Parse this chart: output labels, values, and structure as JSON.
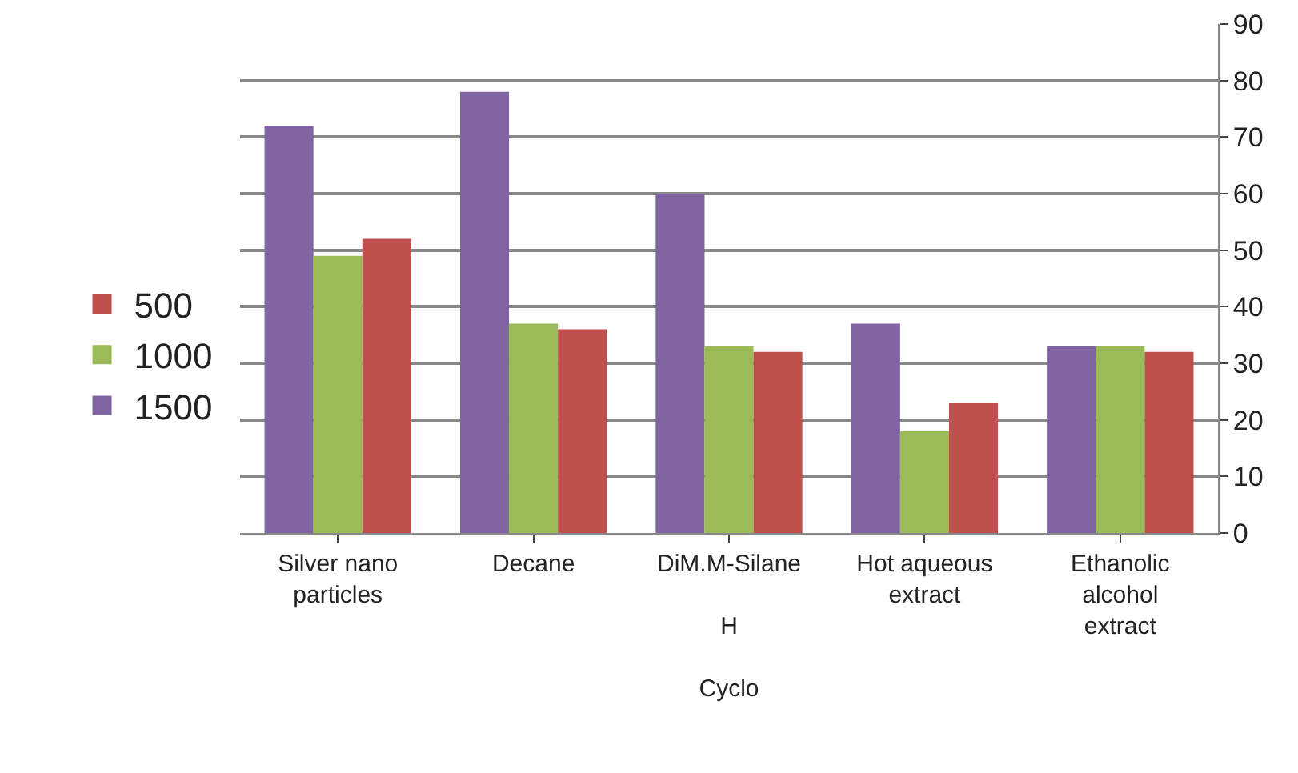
{
  "chart_data": {
    "type": "bar",
    "categories": [
      "Silver nano\nparticles",
      "Decane",
      "DiM.M-Silane\n\nH\n\nCyclo",
      "Hot aqueous\nextract",
      "Ethanolic\nalcohol\nextract"
    ],
    "series": [
      {
        "name": "1500",
        "color": "#8064a2",
        "values": [
          72,
          78,
          60,
          37,
          33
        ]
      },
      {
        "name": "1000",
        "color": "#9bbb59",
        "values": [
          49,
          37,
          33,
          18,
          33
        ]
      },
      {
        "name": "500",
        "color": "#c0504d",
        "values": [
          52,
          36,
          32,
          23,
          32
        ]
      }
    ],
    "ylim": [
      0,
      90
    ],
    "yticks": [
      0,
      10,
      20,
      30,
      40,
      50,
      60,
      70,
      80,
      90
    ],
    "grid": "y",
    "legend": "left"
  }
}
